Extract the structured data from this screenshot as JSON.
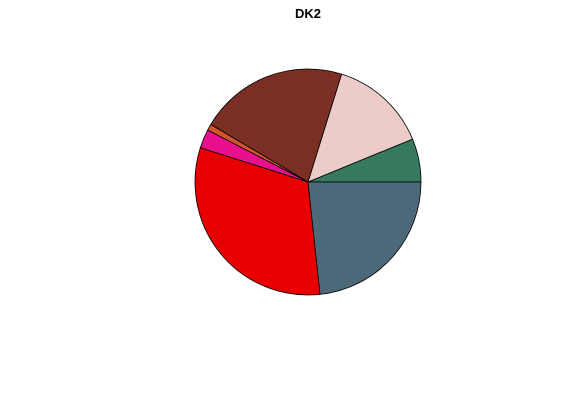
{
  "chart_data": {
    "type": "pie",
    "title": "DK2",
    "slices": [
      {
        "value": 6.2,
        "color": "#357a5e"
      },
      {
        "value": 14.0,
        "color": "#ebccc8"
      },
      {
        "value": 21.3,
        "color": "#7a2e24"
      },
      {
        "value": 0.9,
        "color": "#d2542c"
      },
      {
        "value": 2.7,
        "color": "#e8108c"
      },
      {
        "value": 31.6,
        "color": "#e80000"
      },
      {
        "value": 23.3,
        "color": "#4d6878"
      }
    ],
    "start_angle_deg": 0,
    "direction": "counterclockwise",
    "legend": "none"
  }
}
